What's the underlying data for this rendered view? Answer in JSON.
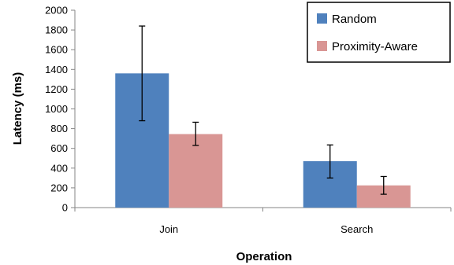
{
  "chart_data": {
    "type": "bar",
    "title": "",
    "xlabel": "Operation",
    "ylabel": "Latency (ms)",
    "ylim": [
      0,
      2000
    ],
    "yticks": [
      0,
      200,
      400,
      600,
      800,
      1000,
      1200,
      1400,
      1600,
      1800,
      2000
    ],
    "categories": [
      "Join",
      "Search"
    ],
    "series": [
      {
        "name": "Random",
        "color": "#4f81bd",
        "values": [
          1360,
          470
        ],
        "error_low": [
          880,
          300
        ],
        "error_high": [
          1840,
          635
        ]
      },
      {
        "name": "Proximity-Aware",
        "color": "#d99694",
        "values": [
          745,
          225
        ],
        "error_low": [
          630,
          135
        ],
        "error_high": [
          865,
          315
        ]
      }
    ],
    "grid": false,
    "legend": "top-right"
  }
}
